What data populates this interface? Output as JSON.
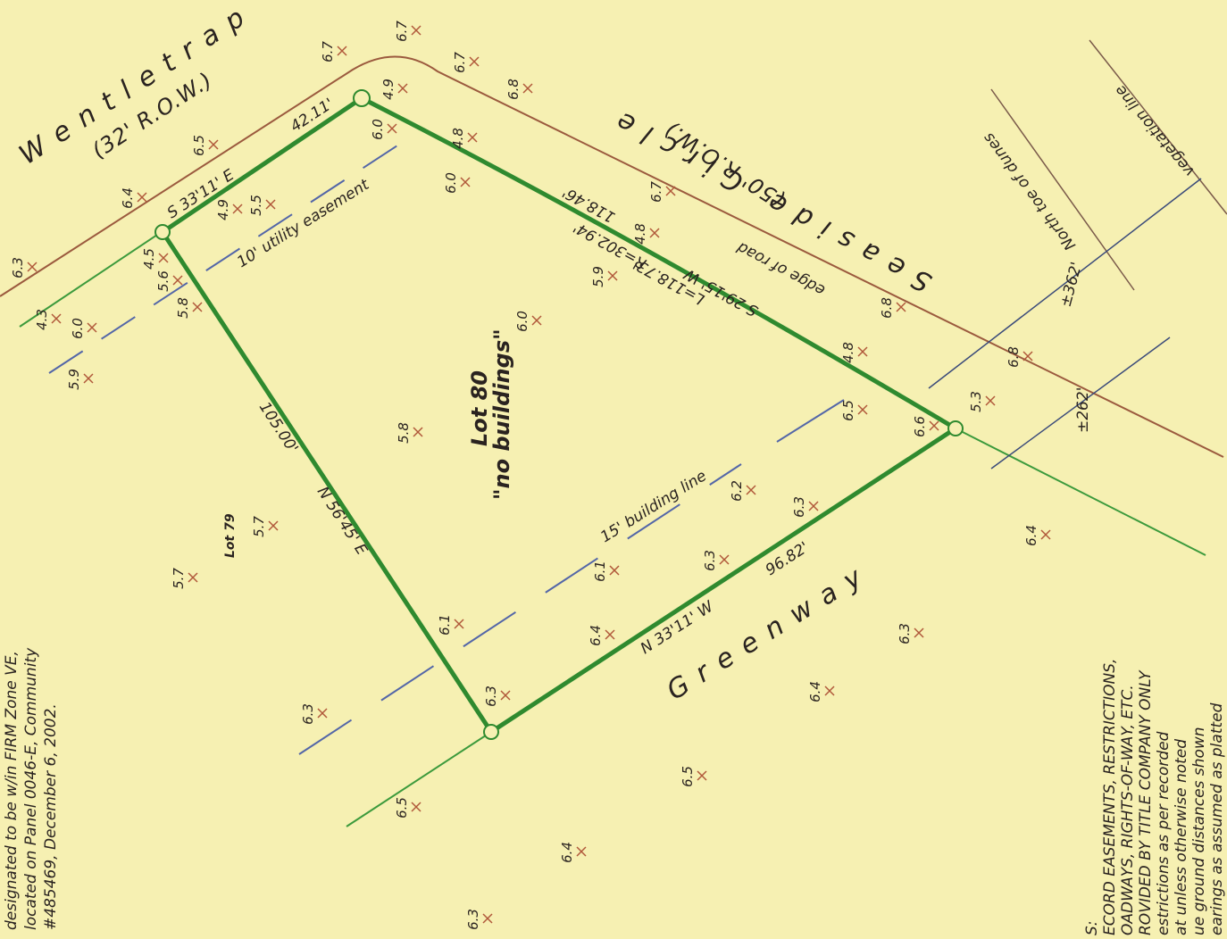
{
  "streets": {
    "wentletrap": "Wentletrap",
    "wentletrap_row": "(32' R.O.W.)",
    "seaside": "Seaside Circle",
    "seaside_row": "(50' R.O.W.)",
    "greenway": "Greenway"
  },
  "lots": {
    "lot_80": "Lot 80",
    "lot_80_note": "\"no buildings\"",
    "lot_79": "Lot 79"
  },
  "courses": {
    "north_bearing": "S 33'11' E",
    "north_distance": "42.11'",
    "west_distance": "105.00'",
    "west_bearing": "N 56'45' E",
    "east_bearing": "S 29'15' W",
    "east_arc": "L=118.73'",
    "east_radius": "R=302.94'",
    "east_chord": "118.46'",
    "south_bearing": "N 33'11' W",
    "south_distance": "96.82'"
  },
  "lines": {
    "easement": "10' utility easement",
    "building_line": "15' building line",
    "edge_of_road": "edge of road",
    "toe_of_dunes": "North toe of dunes",
    "vegetation": "vegetation line",
    "dist_362": "±362'",
    "dist_262": "±262'"
  },
  "spot_elevations": [
    "6.3",
    "6.4",
    "6.5",
    "6.7",
    "6.7",
    "6.7",
    "6.8",
    "4.9",
    "6.0",
    "4.8",
    "6.0",
    "4.9",
    "5.5",
    "4.5",
    "5.6",
    "5.8",
    "4.3",
    "6.0",
    "5.9",
    "6.7",
    "4.8",
    "5.9",
    "6.0",
    "5.8",
    "6.8",
    "4.8",
    "6.8",
    "6.5",
    "6.6",
    "5.3",
    "6.2",
    "6.3",
    "6.1",
    "6.3",
    "6.4",
    "6.1",
    "6.3",
    "5.7",
    "5.7",
    "6.3",
    "6.5",
    "6.5",
    "6.4",
    "6.3",
    "6.4",
    "6.3",
    "6.4"
  ],
  "flood_note": [
    "designated to be w/in FIRM Zone VE,",
    "located on Panel 0046-E, Community",
    "#485469, December 6, 2002."
  ],
  "notes": [
    "S:",
    "ECORD EASEMENTS, RESTRICTIONS,",
    "OADWAYS, RIGHTS-OF-WAY, ETC.",
    "ROVIDED BY TITLE COMPANY ONLY",
    "estrictions as per recorded",
    "at unless otherwise noted",
    "ue ground distances shown",
    "earings as assumed as platted"
  ]
}
